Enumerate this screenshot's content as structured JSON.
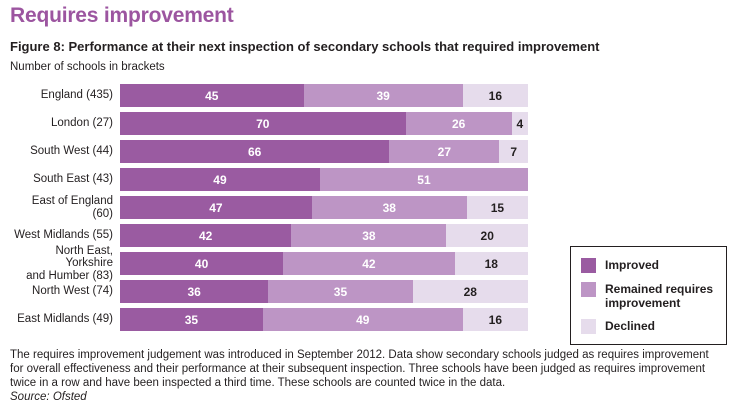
{
  "page": {
    "title": "Requires improvement",
    "figure_title": "Figure 8: Performance at their next inspection of secondary schools that required improvement",
    "note": "Number of schools in brackets",
    "footnote": "The requires improvement judgement was introduced in September 2012. Data show secondary schools judged as requires improvement for overall effectiveness and their performance at their subsequent inspection. Three schools have been judged as requires improvement twice in a row and have been inspected a third time. These schools are counted twice in the data.",
    "source": "Source: Ofsted"
  },
  "colors": {
    "title_purple": "#9c55a0",
    "improved": "#9a5ba1",
    "remained": "#bd95c5",
    "declined": "#e6dcec",
    "number_on_purple": "#ffffff",
    "number_on_pale": "#231f20",
    "text": "#231f20"
  },
  "legend": {
    "position": "right",
    "items": [
      {
        "label": "Improved",
        "key": "improved"
      },
      {
        "label": "Remained requires improvement",
        "key": "remained"
      },
      {
        "label": "Declined",
        "key": "declined"
      }
    ]
  },
  "chart_data": {
    "type": "bar",
    "orientation": "horizontal",
    "stacked": true,
    "title": "Figure 8: Performance at their next inspection of secondary schools that required improvement",
    "subtitle": "Number of schools in brackets",
    "x_range": [
      0,
      100
    ],
    "value_unit": "percent",
    "grid": false,
    "legend_position": "right",
    "categories": [
      "England (435)",
      "London (27)",
      "South West (44)",
      "South East (43)",
      "East of England (60)",
      "West Midlands (55)",
      "North East, Yorkshire\nand Humber (83)",
      "North West (74)",
      "East Midlands (49)"
    ],
    "series": [
      {
        "name": "Improved",
        "key": "improved",
        "color": "#9a5ba1",
        "label_color": "#ffffff",
        "values": [
          45,
          70,
          66,
          49,
          47,
          42,
          40,
          36,
          35
        ]
      },
      {
        "name": "Remained requires improvement",
        "key": "remained",
        "color": "#bd95c5",
        "label_color": "#ffffff",
        "values": [
          39,
          26,
          27,
          51,
          38,
          38,
          42,
          35,
          49
        ]
      },
      {
        "name": "Declined",
        "key": "declined",
        "color": "#e6dcec",
        "label_color": "#231f20",
        "values": [
          16,
          4,
          7,
          0,
          15,
          20,
          18,
          28,
          16
        ]
      }
    ]
  }
}
